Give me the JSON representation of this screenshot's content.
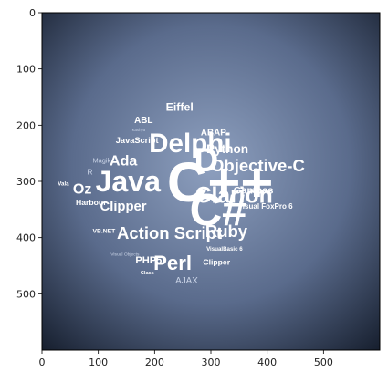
{
  "axes": {
    "x_ticks": [
      0,
      100,
      200,
      300,
      400,
      500
    ],
    "y_ticks": [
      0,
      100,
      200,
      300,
      400,
      500
    ],
    "xlim": [
      0,
      600
    ],
    "ylim": [
      600,
      0
    ]
  },
  "image": {
    "background_center": "#8ea0bf",
    "background_edge": "#151d2c",
    "words": [
      {
        "text": "C++",
        "size": 100,
        "x": 222,
        "y": 336,
        "style": "bold"
      },
      {
        "text": "C#",
        "size": 80,
        "x": 262,
        "y": 378,
        "style": "bold"
      },
      {
        "text": "Delphi",
        "size": 48,
        "x": 190,
        "y": 248,
        "style": "bold"
      },
      {
        "text": "D",
        "size": 60,
        "x": 270,
        "y": 282,
        "style": "bold"
      },
      {
        "text": "Java",
        "size": 52,
        "x": 95,
        "y": 318,
        "style": "bold"
      },
      {
        "text": "Clarion",
        "size": 40,
        "x": 272,
        "y": 338,
        "style": "bold"
      },
      {
        "text": "Objective-C",
        "size": 30,
        "x": 300,
        "y": 282,
        "style": "bold"
      },
      {
        "text": "Action Script",
        "size": 30,
        "x": 133,
        "y": 402,
        "style": "bold"
      },
      {
        "text": "Perl",
        "size": 36,
        "x": 198,
        "y": 457,
        "style": "bold"
      },
      {
        "text": "Ruby",
        "size": 30,
        "x": 290,
        "y": 399,
        "style": "bold"
      },
      {
        "text": "Clipper",
        "size": 24,
        "x": 103,
        "y": 352,
        "style": "bold"
      },
      {
        "text": "Ada",
        "size": 26,
        "x": 120,
        "y": 272,
        "style": "bold"
      },
      {
        "text": "Oz",
        "size": 26,
        "x": 55,
        "y": 322,
        "style": "bold"
      },
      {
        "text": "Python",
        "size": 22,
        "x": 292,
        "y": 250,
        "style": "bold"
      },
      {
        "text": "Eiffel",
        "size": 20,
        "x": 220,
        "y": 174,
        "style": "normal"
      },
      {
        "text": "ABL",
        "size": 16,
        "x": 164,
        "y": 196,
        "style": "normal"
      },
      {
        "text": "JavaScript",
        "size": 15,
        "x": 131,
        "y": 232,
        "style": "normal"
      },
      {
        "text": "ABAP",
        "size": 16,
        "x": 282,
        "y": 218,
        "style": "normal"
      },
      {
        "text": "Gambas",
        "size": 18,
        "x": 340,
        "y": 322,
        "style": "bold"
      },
      {
        "text": "Visual FoxPro 6",
        "size": 13,
        "x": 348,
        "y": 349,
        "style": "normal"
      },
      {
        "text": "Harbour",
        "size": 14,
        "x": 60,
        "y": 342,
        "style": "bold"
      },
      {
        "text": "Magik",
        "size": 12,
        "x": 90,
        "y": 267,
        "style": "light"
      },
      {
        "text": "R",
        "size": 14,
        "x": 80,
        "y": 288,
        "style": "light"
      },
      {
        "text": "Vala",
        "size": 10,
        "x": 28,
        "y": 307,
        "style": "normal"
      },
      {
        "text": "VB.NET",
        "size": 11,
        "x": 90,
        "y": 392,
        "style": "normal"
      },
      {
        "text": "PHP5",
        "size": 18,
        "x": 166,
        "y": 446,
        "style": "bold"
      },
      {
        "text": "Visual Objects",
        "size": 8,
        "x": 122,
        "y": 432,
        "style": "light"
      },
      {
        "text": "Class",
        "size": 9,
        "x": 175,
        "y": 465,
        "style": "normal"
      },
      {
        "text": "AJAX",
        "size": 16,
        "x": 237,
        "y": 482,
        "style": "light"
      },
      {
        "text": "VisualBasic 6",
        "size": 10,
        "x": 292,
        "y": 423,
        "style": "normal"
      },
      {
        "text": "Clipper",
        "size": 14,
        "x": 286,
        "y": 448,
        "style": "normal"
      },
      {
        "text": "Kashya",
        "size": 7,
        "x": 160,
        "y": 211,
        "style": "light"
      }
    ]
  }
}
